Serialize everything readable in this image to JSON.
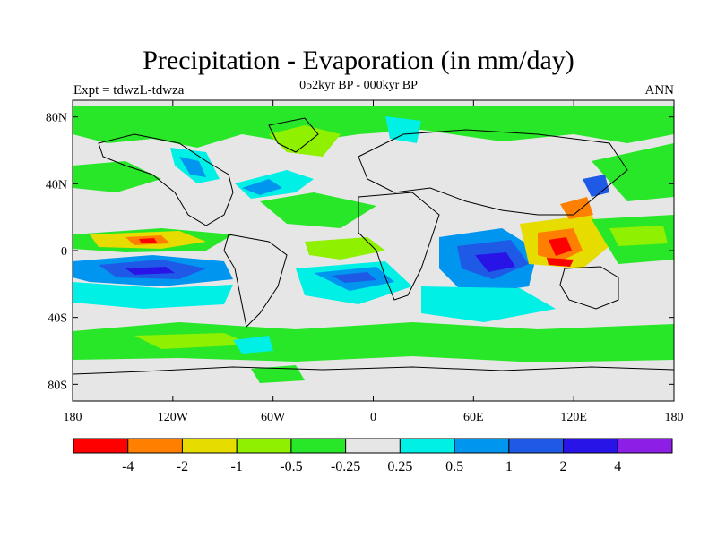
{
  "title": "Precipitation - Evaporation (in mm/day)",
  "subtitle": "052kyr BP - 000kyr BP",
  "left_label": "Expt = tdwzL-tdwza",
  "right_label": "ANN",
  "map": {
    "projection": "cylindrical-equidistant",
    "lon_range": [
      -180,
      180
    ],
    "lat_range": [
      -90,
      90
    ],
    "y_ticks": [
      {
        "lat": 80,
        "label": "80N"
      },
      {
        "lat": 40,
        "label": "40N"
      },
      {
        "lat": 0,
        "label": "0"
      },
      {
        "lat": -40,
        "label": "40S"
      },
      {
        "lat": -80,
        "label": "80S"
      }
    ],
    "x_ticks": [
      {
        "lon": -180,
        "label": "180"
      },
      {
        "lon": -120,
        "label": "120W"
      },
      {
        "lon": -60,
        "label": "60W"
      },
      {
        "lon": 0,
        "label": "0"
      },
      {
        "lon": 60,
        "label": "60E"
      },
      {
        "lon": 120,
        "label": "120E"
      },
      {
        "lon": 180,
        "label": "180"
      }
    ],
    "background_color": "#e6e6e6",
    "coastline_color": "#000000"
  },
  "colorbar": {
    "colors": [
      "#ff0000",
      "#ff8000",
      "#e6dc00",
      "#8ff000",
      "#28e628",
      "#e6e6e6",
      "#00f0e6",
      "#0096f0",
      "#1e5ae6",
      "#2814e6",
      "#8c1ee6"
    ],
    "labels": [
      "-4",
      "-2",
      "-1",
      "-0.5",
      "-0.25",
      "0.25",
      "0.5",
      "1",
      "2",
      "4"
    ]
  }
}
